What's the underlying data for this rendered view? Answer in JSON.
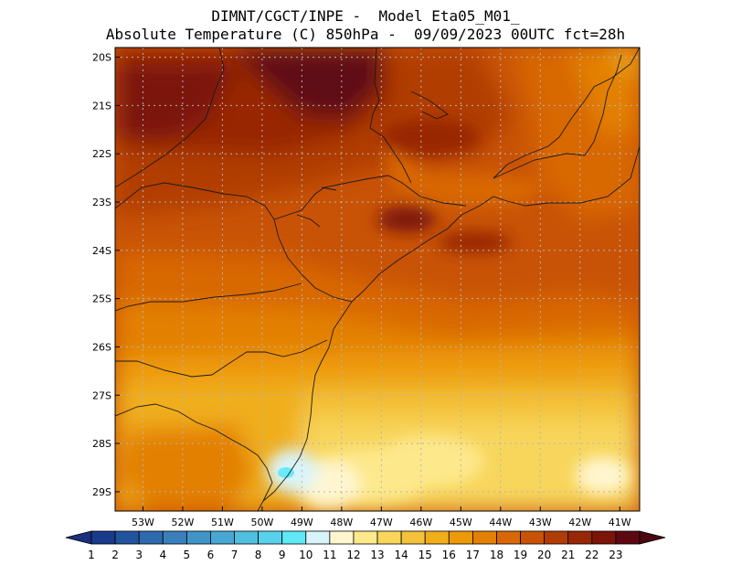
{
  "title": {
    "line1": "DIMNT/CGCT/INPE -  Model Eta05_M01_",
    "line2": "Absolute Temperature (C) 850hPa -  09/09/2023 00UTC fct=28h"
  },
  "map": {
    "lon_range": [
      -53.7,
      -40.5
    ],
    "lat_range": [
      -29.4,
      -19.8
    ],
    "lon_ticks": [
      "53W",
      "52W",
      "51W",
      "50W",
      "49W",
      "48W",
      "47W",
      "46W",
      "45W",
      "44W",
      "43W",
      "42W",
      "41W"
    ],
    "lat_ticks": [
      "20S",
      "21S",
      "22S",
      "23S",
      "24S",
      "25S",
      "26S",
      "27S",
      "28S",
      "29S"
    ]
  },
  "colorbar": {
    "labels": [
      "1",
      "2",
      "3",
      "4",
      "5",
      "6",
      "7",
      "8",
      "9",
      "10",
      "11",
      "12",
      "13",
      "14",
      "15",
      "16",
      "17",
      "18",
      "19",
      "20",
      "21",
      "22",
      "23"
    ],
    "colors": [
      "#1a3a8c",
      "#22539e",
      "#2e6aae",
      "#3a7fbb",
      "#4194c7",
      "#48a8d3",
      "#50bedf",
      "#58d2eb",
      "#60e8f7",
      "#d8f4fa",
      "#fff6d0",
      "#fde88c",
      "#f8d65c",
      "#f4c23a",
      "#f0ae1a",
      "#ed9a08",
      "#e38006",
      "#d86806",
      "#c85306",
      "#b13d06",
      "#982706",
      "#7c1408",
      "#5e0912"
    ],
    "under_color": "#1b2f80",
    "over_color": "#4a0810"
  }
}
